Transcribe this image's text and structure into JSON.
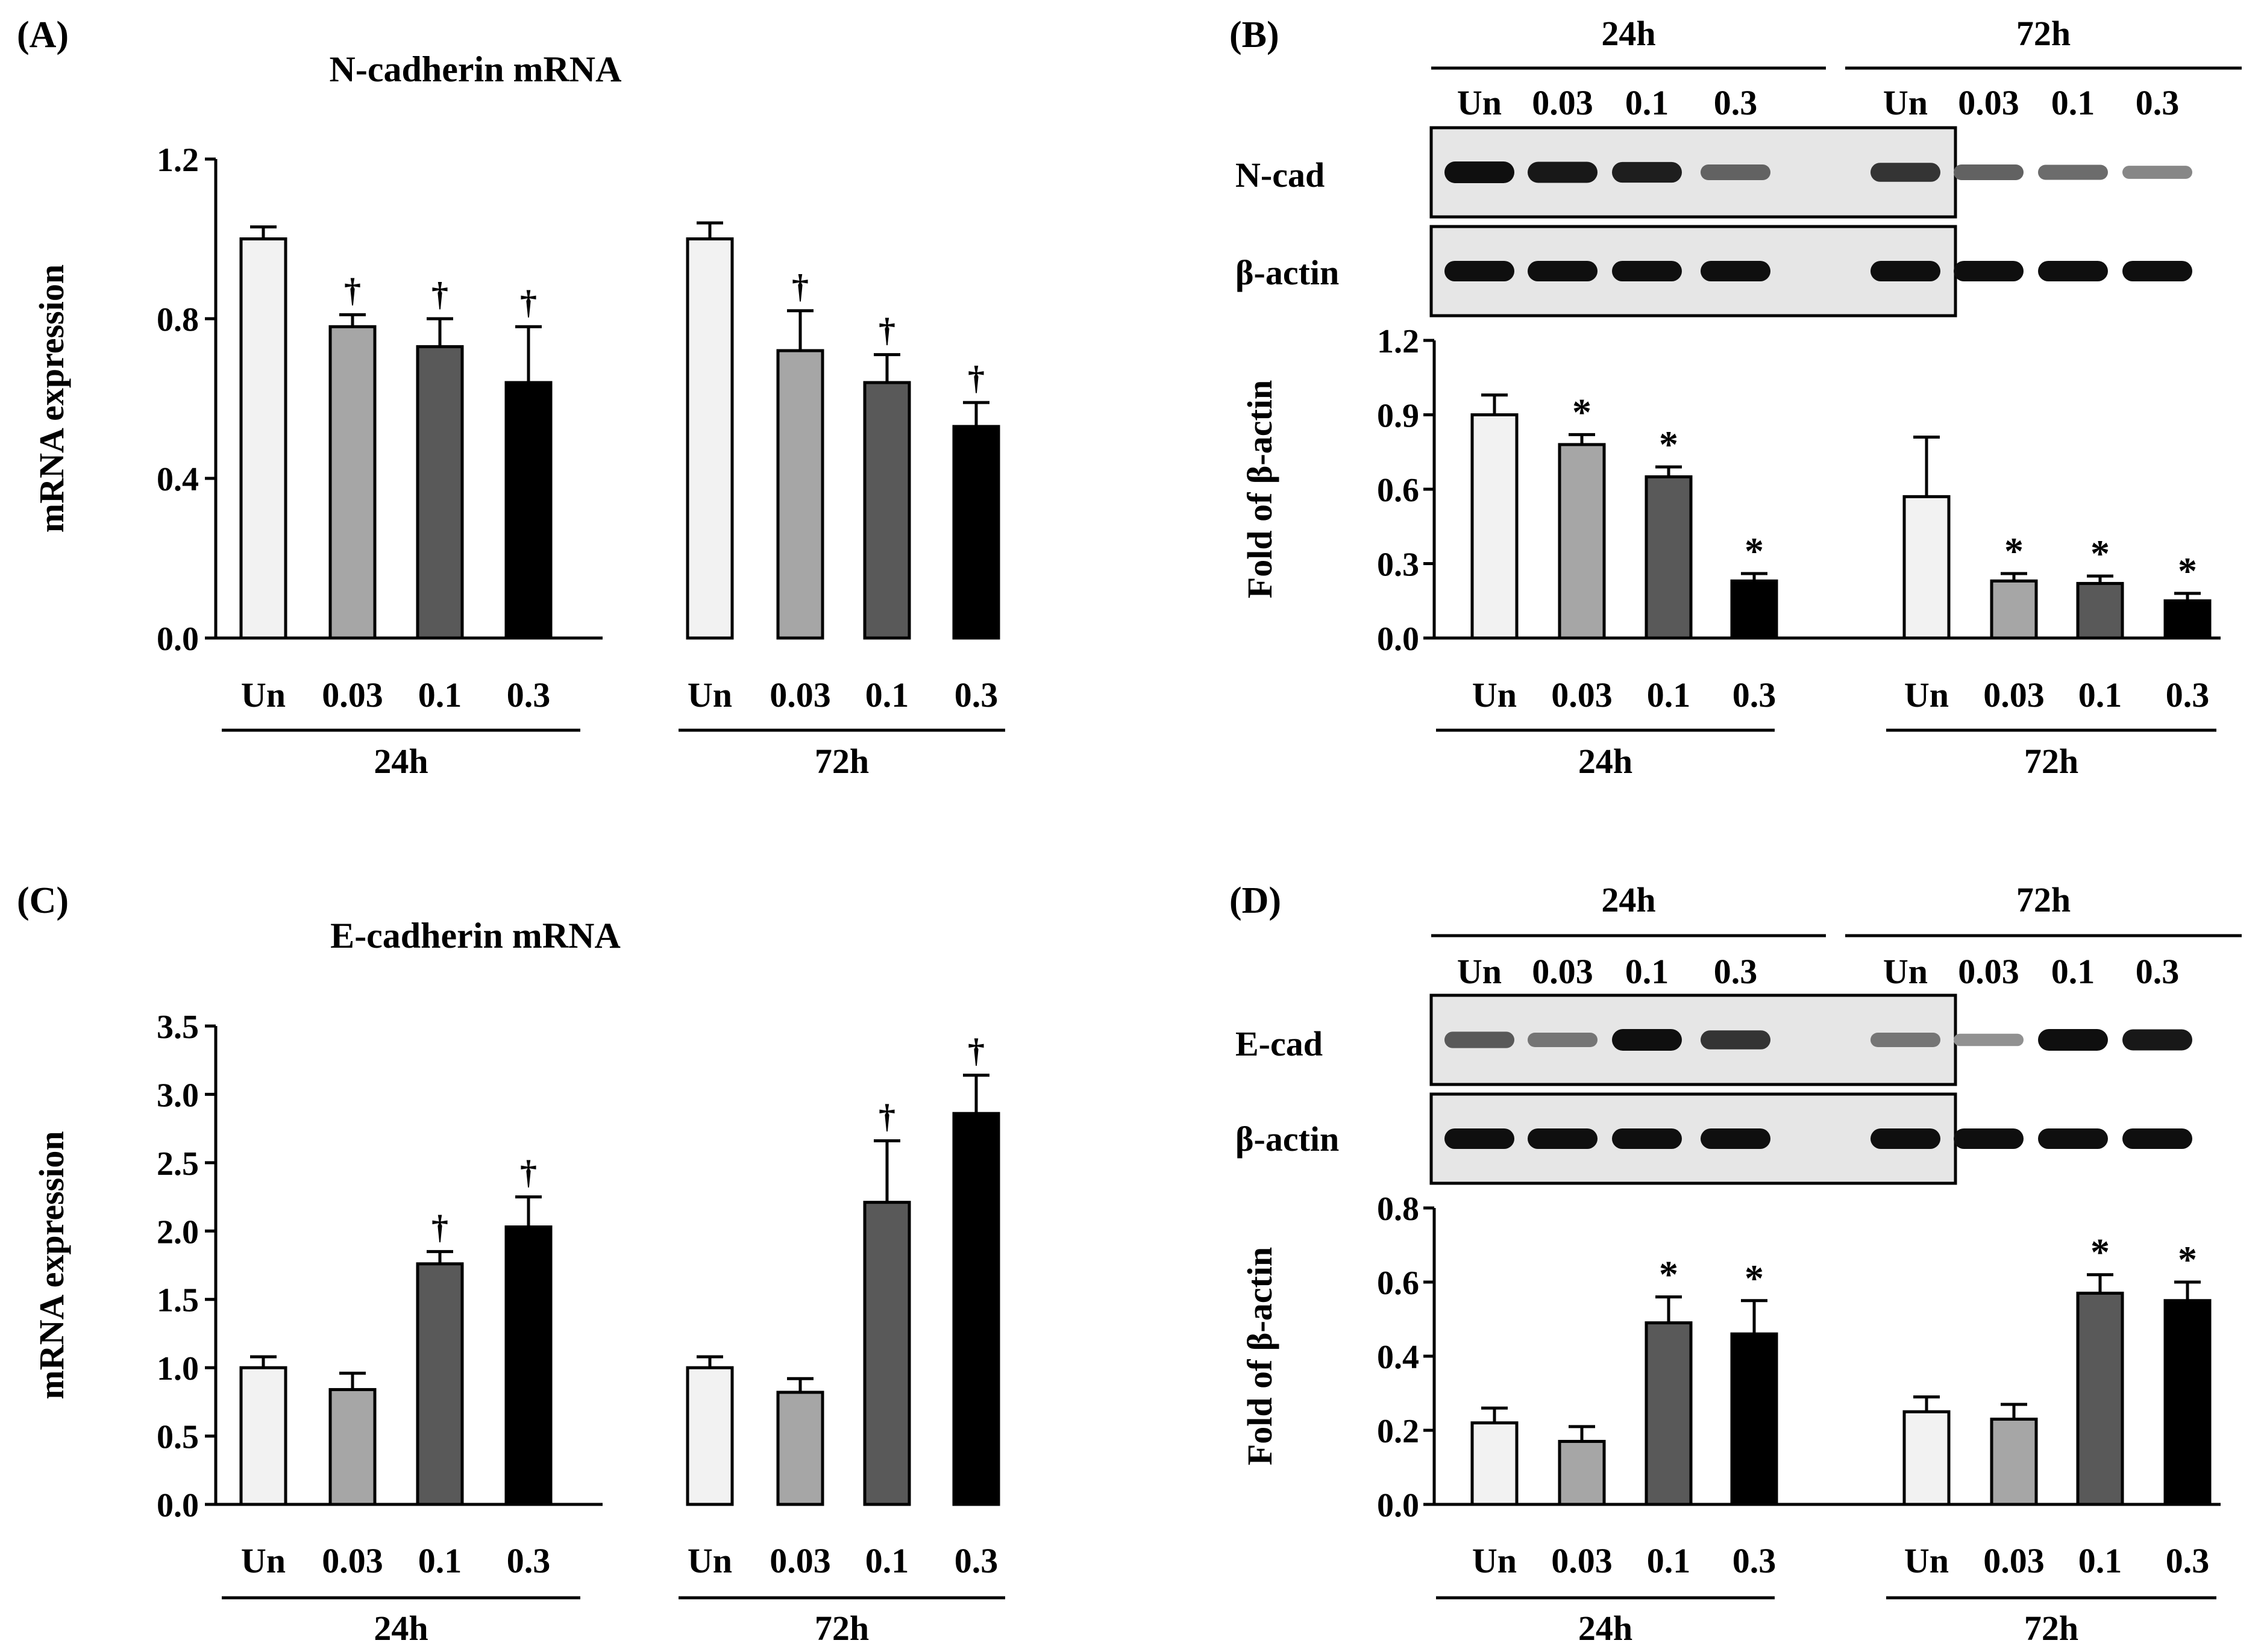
{
  "figure": {
    "panel_labels": [
      "(A)",
      "(B)",
      "(C)",
      "(D)"
    ],
    "blot_names": {
      "B": [
        "N-cad",
        "β-actin"
      ],
      "D": [
        "E-cad",
        "β-actin"
      ]
    },
    "colors": {
      "bars": [
        "#f2f2f2",
        "#a6a6a6",
        "#595959",
        "#000000"
      ],
      "ink": "#000000"
    }
  },
  "chart_data": [
    {
      "id": "A",
      "type": "bar",
      "title": "N-cadherin mRNA",
      "ylabel": "mRNA expression",
      "xlabel": "",
      "ylim": [
        0,
        1.2
      ],
      "yticks": [
        "0.0",
        "0.4",
        "0.8",
        "1.2"
      ],
      "categories": [
        "Un",
        "0.03",
        "0.1",
        "0.3"
      ],
      "groups": [
        "24h",
        "72h"
      ],
      "series": [
        {
          "name": "24h",
          "values": [
            1.0,
            0.78,
            0.73,
            0.64
          ],
          "errors": [
            0.03,
            0.03,
            0.07,
            0.14
          ],
          "marks": [
            "",
            "†",
            "†",
            "†"
          ]
        },
        {
          "name": "72h",
          "values": [
            1.0,
            0.72,
            0.64,
            0.53
          ],
          "errors": [
            0.04,
            0.1,
            0.07,
            0.06
          ],
          "marks": [
            "",
            "†",
            "†",
            "†"
          ]
        }
      ]
    },
    {
      "id": "B",
      "type": "bar",
      "title": "",
      "ylabel": "Fold of β-actin",
      "xlabel": "",
      "ylim": [
        0,
        1.2
      ],
      "yticks": [
        "0.0",
        "0.3",
        "0.6",
        "0.9",
        "1.2"
      ],
      "categories": [
        "Un",
        "0.03",
        "0.1",
        "0.3"
      ],
      "groups": [
        "24h",
        "72h"
      ],
      "series": [
        {
          "name": "24h",
          "values": [
            0.9,
            0.78,
            0.65,
            0.23
          ],
          "errors": [
            0.08,
            0.04,
            0.04,
            0.03
          ],
          "marks": [
            "",
            "*",
            "*",
            "*"
          ]
        },
        {
          "name": "72h",
          "values": [
            0.57,
            0.23,
            0.22,
            0.15
          ],
          "errors": [
            0.24,
            0.03,
            0.03,
            0.03
          ],
          "marks": [
            "",
            "*",
            "*",
            "*"
          ]
        }
      ]
    },
    {
      "id": "C",
      "type": "bar",
      "title": "E-cadherin mRNA",
      "ylabel": "mRNA expression",
      "xlabel": "",
      "ylim": [
        0,
        3.5
      ],
      "yticks": [
        "0.0",
        "0.5",
        "1.0",
        "1.5",
        "2.0",
        "2.5",
        "3.0",
        "3.5"
      ],
      "categories": [
        "Un",
        "0.03",
        "0.1",
        "0.3"
      ],
      "groups": [
        "24h",
        "72h"
      ],
      "series": [
        {
          "name": "24h",
          "values": [
            1.0,
            0.84,
            1.76,
            2.03
          ],
          "errors": [
            0.08,
            0.12,
            0.09,
            0.22
          ],
          "marks": [
            "",
            "",
            "†",
            "†"
          ]
        },
        {
          "name": "72h",
          "values": [
            1.0,
            0.82,
            2.21,
            2.86
          ],
          "errors": [
            0.08,
            0.1,
            0.45,
            0.28
          ],
          "marks": [
            "",
            "",
            "†",
            "†"
          ]
        }
      ]
    },
    {
      "id": "D",
      "type": "bar",
      "title": "",
      "ylabel": "Fold of β-actin",
      "xlabel": "",
      "ylim": [
        0,
        0.8
      ],
      "yticks": [
        "0.0",
        "0.2",
        "0.4",
        "0.6",
        "0.8"
      ],
      "categories": [
        "Un",
        "0.03",
        "0.1",
        "0.3"
      ],
      "groups": [
        "24h",
        "72h"
      ],
      "series": [
        {
          "name": "24h",
          "values": [
            0.22,
            0.17,
            0.49,
            0.46
          ],
          "errors": [
            0.04,
            0.04,
            0.07,
            0.09
          ],
          "marks": [
            "",
            "",
            "*",
            "*"
          ]
        },
        {
          "name": "72h",
          "values": [
            0.25,
            0.23,
            0.57,
            0.55
          ],
          "errors": [
            0.04,
            0.04,
            0.05,
            0.05
          ],
          "marks": [
            "",
            "",
            "*",
            "*"
          ]
        }
      ]
    }
  ],
  "blots": {
    "B": {
      "top": [
        1.0,
        0.95,
        0.92,
        0.55,
        0.8,
        0.55,
        0.5,
        0.35
      ],
      "actin": [
        1,
        1,
        1,
        1,
        1,
        1,
        1,
        1
      ]
    },
    "D": {
      "top": [
        0.6,
        0.45,
        1.0,
        0.8,
        0.45,
        0.3,
        1.0,
        0.95
      ],
      "actin": [
        1,
        1,
        1,
        1,
        1,
        1,
        1,
        1
      ]
    }
  }
}
